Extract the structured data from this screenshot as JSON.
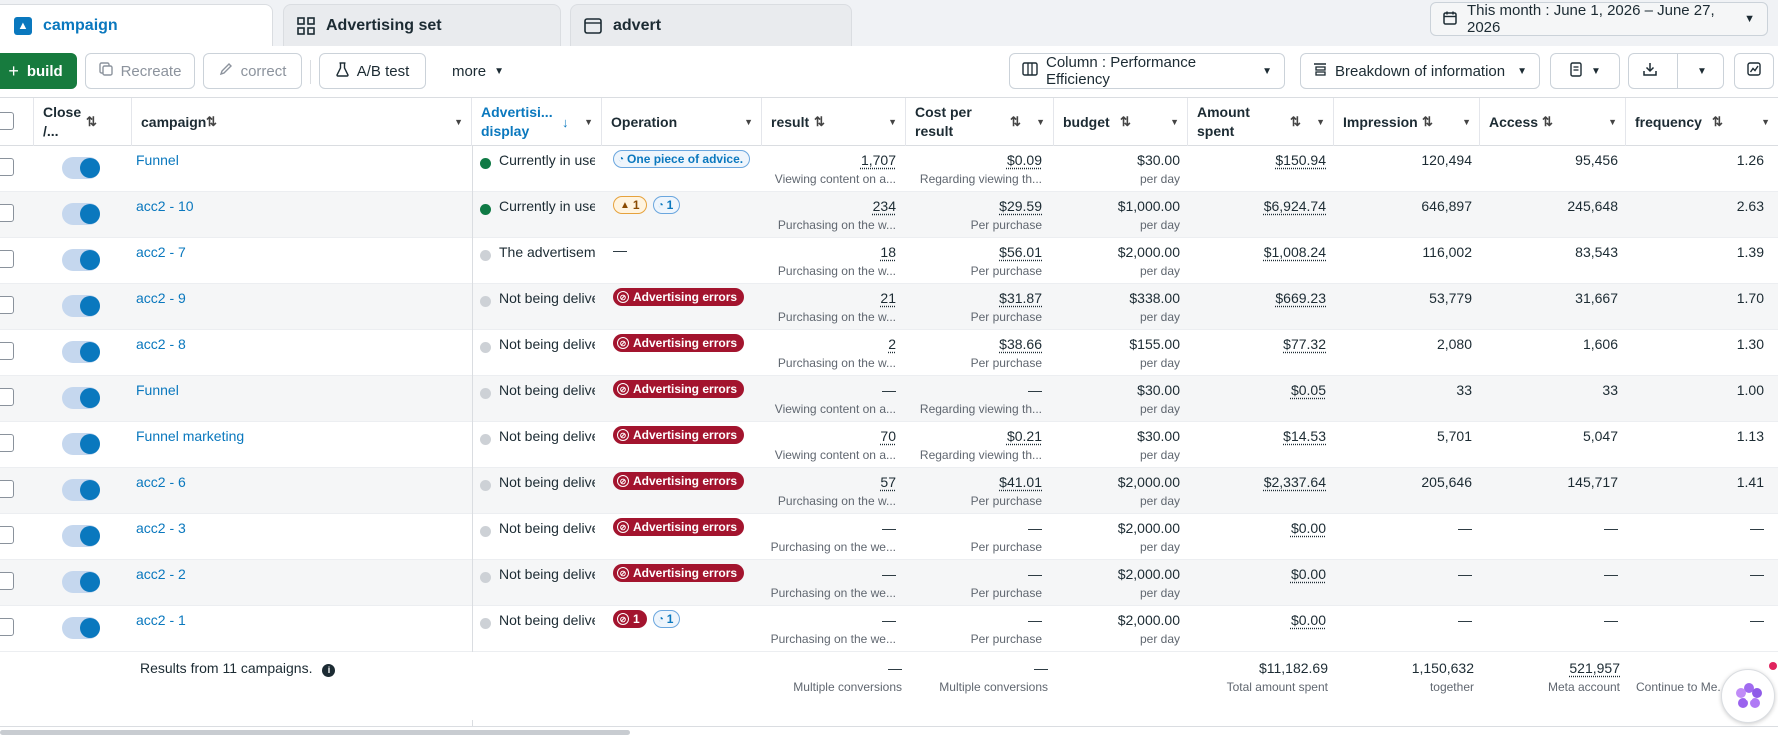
{
  "tabs": [
    {
      "label": "campaign",
      "icon": "campaign-icon",
      "active": true
    },
    {
      "label": "Advertising set",
      "icon": "grid-icon",
      "active": false
    },
    {
      "label": "advert",
      "icon": "ad-frame-icon",
      "active": false
    }
  ],
  "date_range": "This month : June 1, 2026 – June 27, 2026",
  "toolbar": {
    "build": "build",
    "recreate": "Recreate",
    "correct": "correct",
    "ab_test": "A/B test",
    "more": "more",
    "columns": "Column : Performance Efficiency",
    "breakdown": "Breakdown of information"
  },
  "headers": {
    "close": [
      "Close",
      "/..."
    ],
    "campaign": "campaign",
    "ad_display": [
      "Advertisi...",
      "display"
    ],
    "operation": "Operation",
    "result": "result",
    "cost_per_result": [
      "Cost per",
      "result"
    ],
    "budget": "budget",
    "amount_spent": [
      "Amount",
      "spent"
    ],
    "impression": "Impression",
    "access": "Access",
    "frequency": "frequency"
  },
  "rows": [
    {
      "name": "Funnel",
      "delivery": "Currently in use",
      "delivery_active": true,
      "op": [
        {
          "type": "advice",
          "text": "One piece of advice."
        }
      ],
      "result": "1,707",
      "result_sub": "Viewing content on a...",
      "cpr": "$0.09",
      "cpr_sub": "Regarding viewing th...",
      "budget": "$30.00",
      "budget_sub": "per day",
      "spent": "$150.94",
      "impression": "120,494",
      "access": "95,456",
      "frequency": "1.26"
    },
    {
      "name": "acc2 - 10",
      "delivery": "Currently in use",
      "delivery_active": true,
      "op": [
        {
          "type": "warn",
          "text": "1"
        },
        {
          "type": "adv",
          "text": "1"
        }
      ],
      "result": "234",
      "result_sub": "Purchasing on the w...",
      "cpr": "$29.59",
      "cpr_sub": "Per purchase",
      "budget": "$1,000.00",
      "budget_sub": "per day",
      "spent": "$6,924.74",
      "impression": "646,897",
      "access": "245,648",
      "frequency": "2.63"
    },
    {
      "name": "acc2 - 7",
      "delivery": "The advertisement",
      "delivery_active": false,
      "op": [
        {
          "type": "dash",
          "text": "—"
        }
      ],
      "result": "18",
      "result_sub": "Purchasing on the w...",
      "cpr": "$56.01",
      "cpr_sub": "Per purchase",
      "budget": "$2,000.00",
      "budget_sub": "per day",
      "spent": "$1,008.24",
      "impression": "116,002",
      "access": "83,543",
      "frequency": "1.39"
    },
    {
      "name": "acc2 - 9",
      "delivery": "Not being delivered",
      "delivery_active": false,
      "op": [
        {
          "type": "err",
          "text": "Advertising errors"
        }
      ],
      "result": "21",
      "result_sub": "Purchasing on the w...",
      "cpr": "$31.87",
      "cpr_sub": "Per purchase",
      "budget": "$338.00",
      "budget_sub": "per day",
      "spent": "$669.23",
      "impression": "53,779",
      "access": "31,667",
      "frequency": "1.70"
    },
    {
      "name": "acc2 - 8",
      "delivery": "Not being delivered",
      "delivery_active": false,
      "op": [
        {
          "type": "err",
          "text": "Advertising errors"
        }
      ],
      "result": "2",
      "result_sub": "Purchasing on the w...",
      "cpr": "$38.66",
      "cpr_sub": "Per purchase",
      "budget": "$155.00",
      "budget_sub": "per day",
      "spent": "$77.32",
      "impression": "2,080",
      "access": "1,606",
      "frequency": "1.30"
    },
    {
      "name": "Funnel",
      "delivery": "Not being delivered",
      "delivery_active": false,
      "op": [
        {
          "type": "err",
          "text": "Advertising errors"
        }
      ],
      "result": "—",
      "result_sub": "Viewing content on a...",
      "cpr": "—",
      "cpr_sub": "Regarding viewing th...",
      "budget": "$30.00",
      "budget_sub": "per day",
      "spent": "$0.05",
      "impression": "33",
      "access": "33",
      "frequency": "1.00"
    },
    {
      "name": "Funnel marketing",
      "delivery": "Not being delivered",
      "delivery_active": false,
      "op": [
        {
          "type": "err",
          "text": "Advertising errors"
        }
      ],
      "result": "70",
      "result_sub": "Viewing content on a...",
      "cpr": "$0.21",
      "cpr_sub": "Regarding viewing th...",
      "budget": "$30.00",
      "budget_sub": "per day",
      "spent": "$14.53",
      "impression": "5,701",
      "access": "5,047",
      "frequency": "1.13"
    },
    {
      "name": "acc2 - 6",
      "delivery": "Not being delivered",
      "delivery_active": false,
      "op": [
        {
          "type": "err",
          "text": "Advertising errors"
        }
      ],
      "result": "57",
      "result_sub": "Purchasing on the w...",
      "cpr": "$41.01",
      "cpr_sub": "Per purchase",
      "budget": "$2,000.00",
      "budget_sub": "per day",
      "spent": "$2,337.64",
      "impression": "205,646",
      "access": "145,717",
      "frequency": "1.41"
    },
    {
      "name": "acc2 - 3",
      "delivery": "Not being delivered",
      "delivery_active": false,
      "op": [
        {
          "type": "err",
          "text": "Advertising errors"
        }
      ],
      "result": "—",
      "result_sub": "Purchasing on the we...",
      "cpr": "—",
      "cpr_sub": "Per purchase",
      "budget": "$2,000.00",
      "budget_sub": "per day",
      "spent": "$0.00",
      "impression": "—",
      "access": "—",
      "frequency": "—"
    },
    {
      "name": "acc2 - 2",
      "delivery": "Not being delivered",
      "delivery_active": false,
      "op": [
        {
          "type": "err",
          "text": "Advertising errors"
        }
      ],
      "result": "—",
      "result_sub": "Purchasing on the we...",
      "cpr": "—",
      "cpr_sub": "Per purchase",
      "budget": "$2,000.00",
      "budget_sub": "per day",
      "spent": "$0.00",
      "impression": "—",
      "access": "—",
      "frequency": "—"
    },
    {
      "name": "acc2 - 1",
      "delivery": "Not being delivered",
      "delivery_active": false,
      "op": [
        {
          "type": "errcount",
          "text": "1"
        },
        {
          "type": "adv",
          "text": "1"
        }
      ],
      "result": "—",
      "result_sub": "Purchasing on the we...",
      "cpr": "—",
      "cpr_sub": "Per purchase",
      "budget": "$2,000.00",
      "budget_sub": "per day",
      "spent": "$0.00",
      "impression": "—",
      "access": "—",
      "frequency": "—"
    }
  ],
  "footer": {
    "count": "Results from 11 campaigns.",
    "result": "—",
    "result_sub": "Multiple conversions",
    "cpr": "—",
    "cpr_sub": "Multiple conversions",
    "spent": "$11,182.69",
    "spent_sub": "Total amount spent",
    "impression": "1,150,632",
    "impression_sub": "together",
    "access": "521,957",
    "access_sub": "Meta account",
    "frequency_sub": "Continue to Me..."
  },
  "colors": {
    "accent": "#0a78be",
    "build_green": "#177b3e",
    "error_red": "#a3142e",
    "active_green": "#0f7a45"
  }
}
